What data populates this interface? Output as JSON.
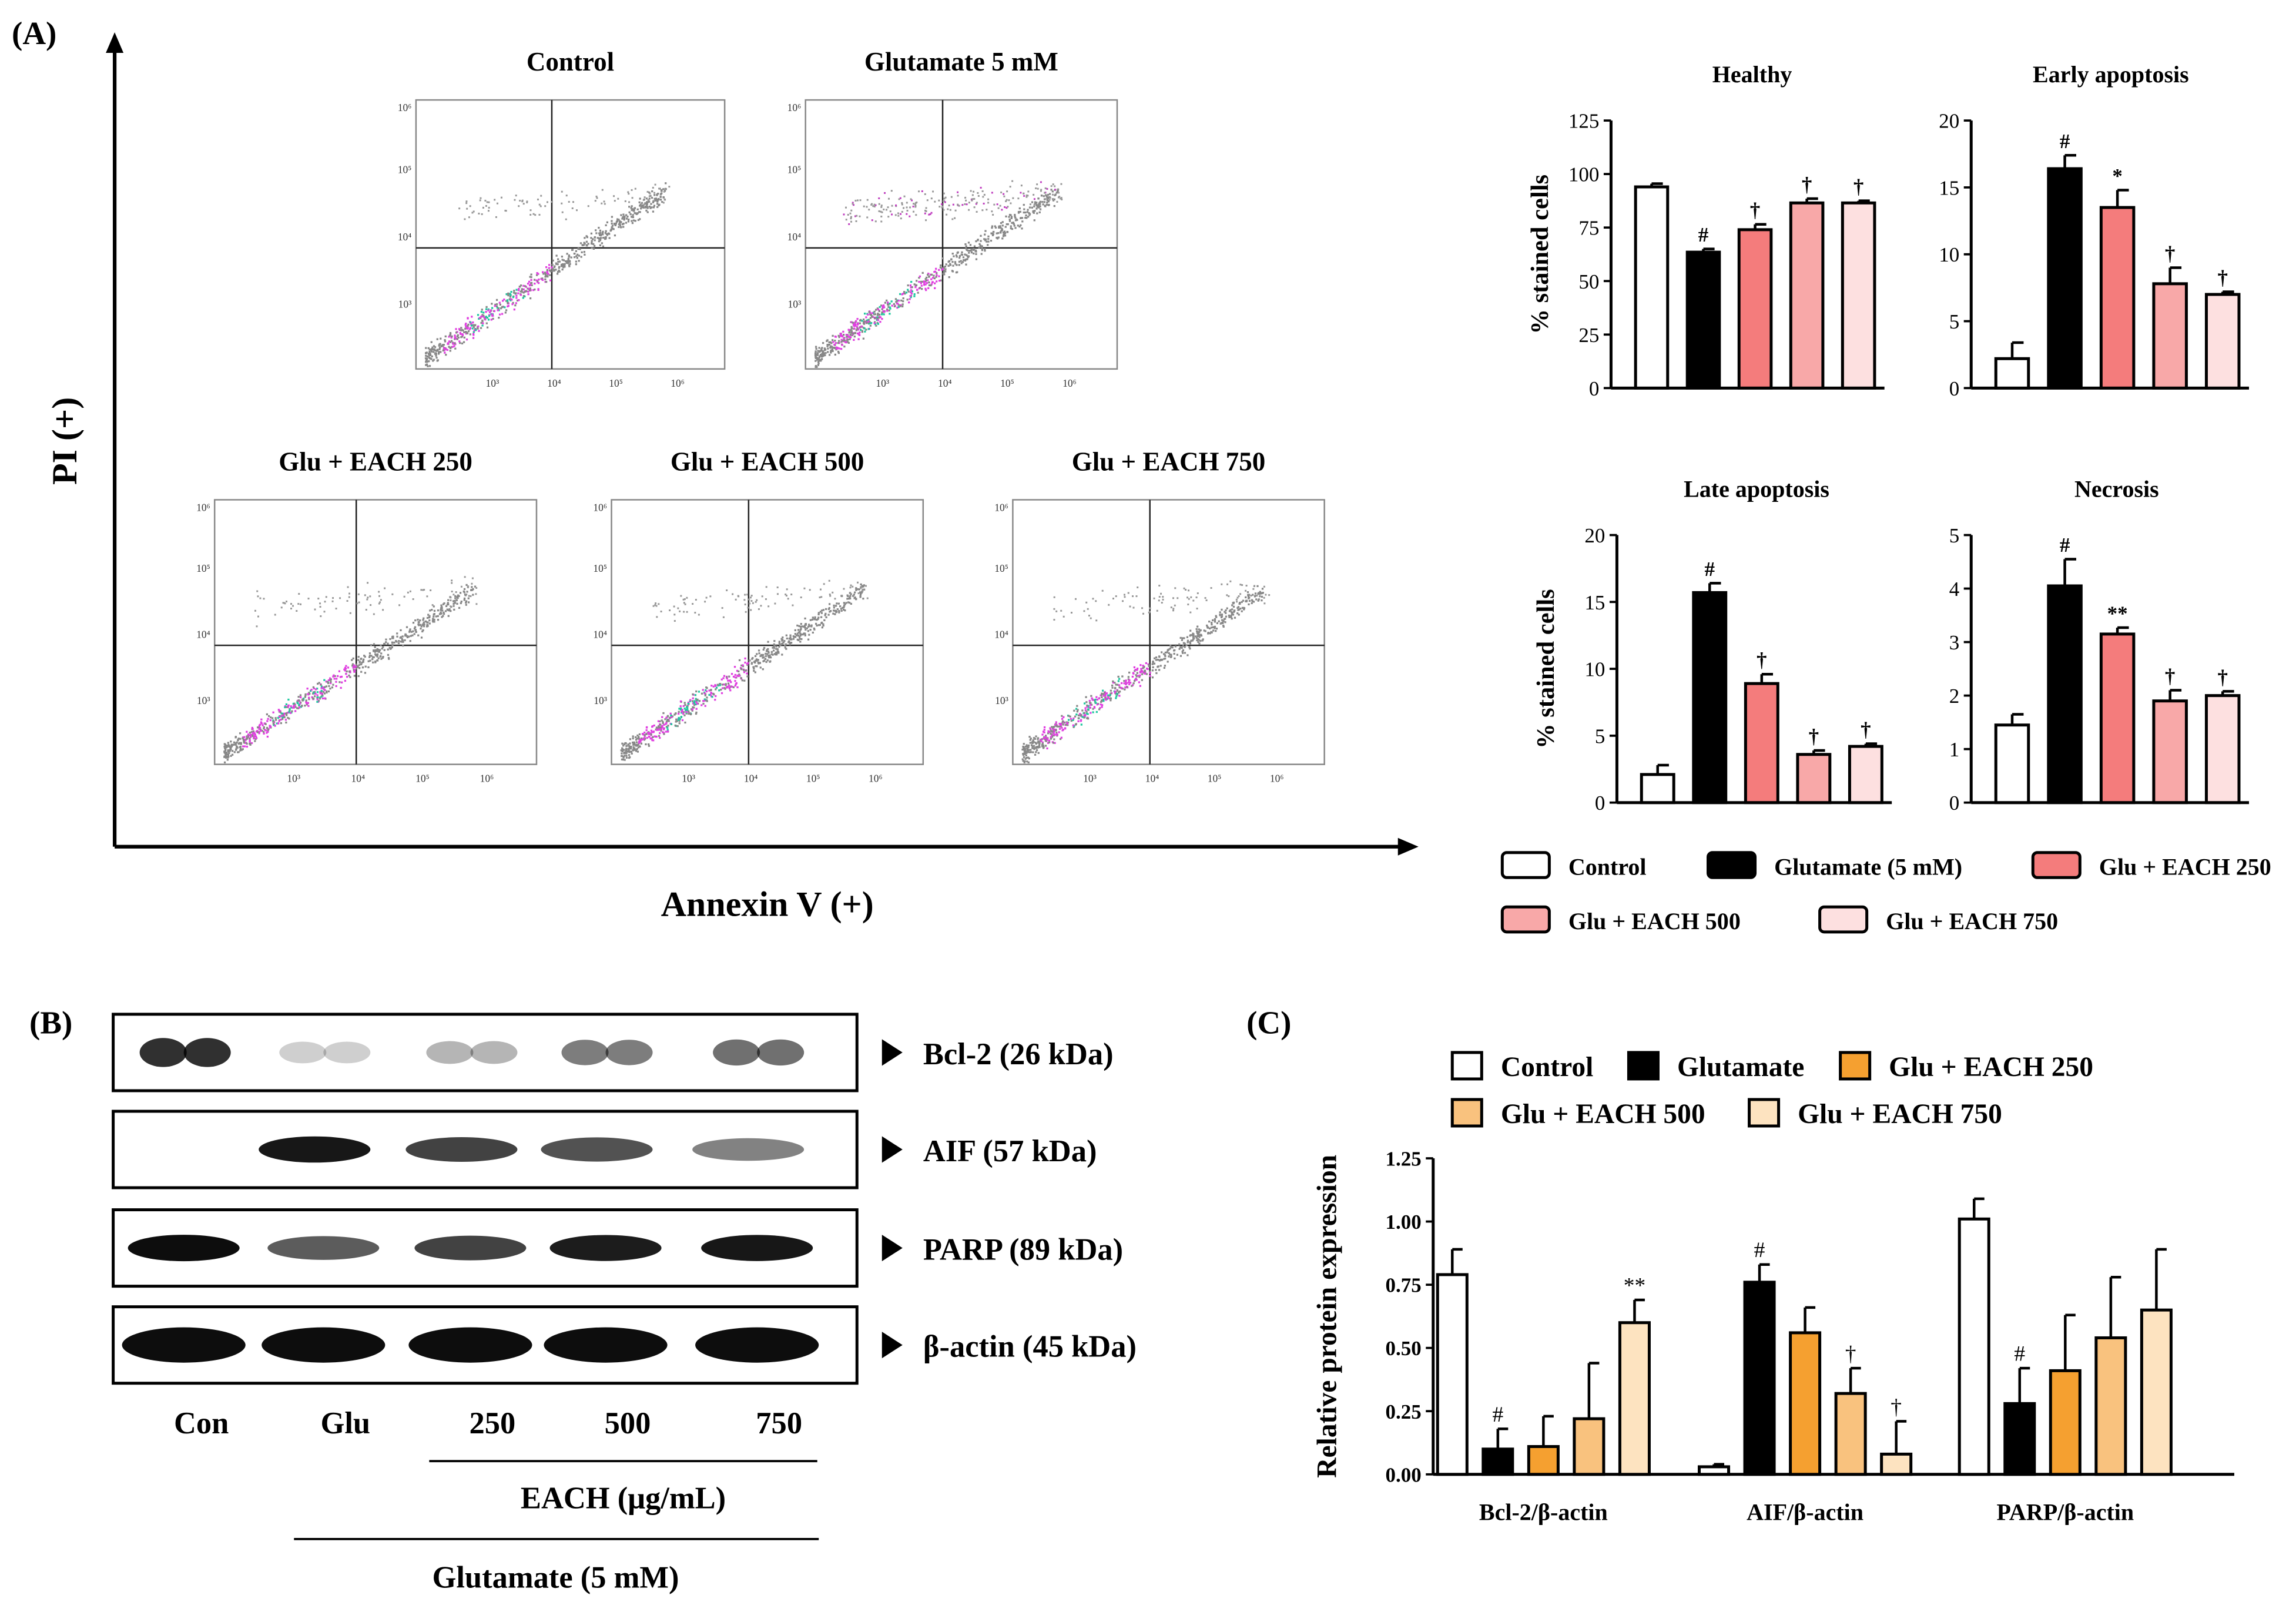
{
  "panel_labels": {
    "a": "(A)",
    "b": "(B)",
    "c": "(C)"
  },
  "flow_cytometry": {
    "y_axis_label": "PI (+)",
    "x_axis_label": "Annexin V (+)",
    "tick_labels": [
      "10³",
      "10⁴",
      "10⁵",
      "10⁶"
    ],
    "plots": [
      {
        "title": "Control"
      },
      {
        "title": "Glutamate 5 mM"
      },
      {
        "title": "Glu + EACH 250"
      },
      {
        "title": "Glu + EACH 500"
      },
      {
        "title": "Glu + EACH 750"
      }
    ]
  },
  "western_blot": {
    "lane_labels": [
      "Con",
      "Glu",
      "250",
      "500",
      "750"
    ],
    "each_label": "EACH (μg/mL)",
    "glutamate_label": "Glutamate (5 mM)",
    "bands": [
      {
        "label": "Bcl-2 (26 kDa)",
        "intensity": [
          0.95,
          0.12,
          0.25,
          0.55,
          0.62
        ]
      },
      {
        "label": "AIF (57 kDa)",
        "intensity": [
          0.0,
          0.95,
          0.7,
          0.62,
          0.35
        ]
      },
      {
        "label": "PARP (89 kDa)",
        "intensity": [
          1.0,
          0.55,
          0.7,
          0.92,
          0.95
        ]
      },
      {
        "label": "β-actin (45 kDa)",
        "intensity": [
          1.0,
          1.0,
          1.0,
          1.0,
          1.0
        ]
      }
    ]
  },
  "chart_data": [
    {
      "type": "bar",
      "title": "Healthy",
      "ylabel": "% stained cells",
      "ylim": [
        0,
        125
      ],
      "yticks": [
        0,
        25,
        50,
        75,
        100,
        125
      ],
      "categories": [
        "Control",
        "Glutamate (5 mM)",
        "Glu + EACH 250",
        "Glu + EACH 500",
        "Glu + EACH 750"
      ],
      "values": [
        94,
        63.5,
        74,
        86.5,
        86.5
      ],
      "errors": [
        1.5,
        1.5,
        2.5,
        2,
        1
      ],
      "annotations": [
        "",
        "#",
        "†",
        "†",
        "†"
      ]
    },
    {
      "type": "bar",
      "title": "Early apoptosis",
      "ylabel": "",
      "ylim": [
        0,
        20
      ],
      "yticks": [
        0,
        5,
        10,
        15,
        20
      ],
      "categories": [
        "Control",
        "Glutamate (5 mM)",
        "Glu + EACH 250",
        "Glu + EACH 500",
        "Glu + EACH 750"
      ],
      "values": [
        2.2,
        16.4,
        13.5,
        7.8,
        7
      ],
      "errors": [
        1.2,
        1,
        1.3,
        1.2,
        0.2
      ],
      "annotations": [
        "",
        "#",
        "*",
        "†",
        "†"
      ]
    },
    {
      "type": "bar",
      "title": "Late apoptosis",
      "ylabel": "% stained cells",
      "ylim": [
        0,
        20
      ],
      "yticks": [
        0,
        5,
        10,
        15,
        20
      ],
      "categories": [
        "Control",
        "Glutamate (5 mM)",
        "Glu + EACH 250",
        "Glu + EACH 500",
        "Glu + EACH 750"
      ],
      "values": [
        2.1,
        15.7,
        8.9,
        3.6,
        4.2
      ],
      "errors": [
        0.7,
        0.7,
        0.7,
        0.3,
        0.2
      ],
      "annotations": [
        "",
        "#",
        "†",
        "†",
        "†"
      ]
    },
    {
      "type": "bar",
      "title": "Necrosis",
      "ylabel": "",
      "ylim": [
        0,
        5
      ],
      "yticks": [
        0,
        1,
        2,
        3,
        4,
        5
      ],
      "categories": [
        "Control",
        "Glutamate (5 mM)",
        "Glu + EACH 250",
        "Glu + EACH 500",
        "Glu + EACH 750"
      ],
      "values": [
        1.45,
        4.05,
        3.15,
        1.9,
        2
      ],
      "errors": [
        0.2,
        0.5,
        0.12,
        0.2,
        0.08
      ],
      "annotations": [
        "",
        "#",
        "**",
        "†",
        "†"
      ]
    },
    {
      "type": "bar",
      "title": "",
      "ylabel": "Relative protein expression",
      "ylim": [
        0,
        1.25
      ],
      "yticks": [
        "0.00",
        "0.25",
        "0.50",
        "0.75",
        "1.00",
        "1.25"
      ],
      "categories": [
        "Bcl-2/β-actin",
        "AIF/β-actin",
        "PARP/β-actin"
      ],
      "series": [
        {
          "name": "Control",
          "values": [
            0.79,
            0.03,
            1.01
          ],
          "errors": [
            0.1,
            0.01,
            0.08
          ],
          "annotations": [
            "",
            "",
            ""
          ]
        },
        {
          "name": "Glutamate",
          "values": [
            0.1,
            0.76,
            0.28
          ],
          "errors": [
            0.08,
            0.07,
            0.14
          ],
          "annotations": [
            "#",
            "#",
            "#"
          ]
        },
        {
          "name": "Glu + EACH 250",
          "values": [
            0.11,
            0.56,
            0.41
          ],
          "errors": [
            0.12,
            0.1,
            0.22
          ],
          "annotations": [
            "",
            "",
            ""
          ]
        },
        {
          "name": "Glu + EACH 500",
          "values": [
            0.22,
            0.32,
            0.54
          ],
          "errors": [
            0.22,
            0.1,
            0.24
          ],
          "annotations": [
            "",
            "†",
            ""
          ]
        },
        {
          "name": "Glu + EACH 750",
          "values": [
            0.6,
            0.08,
            0.65
          ],
          "errors": [
            0.09,
            0.13,
            0.24
          ],
          "annotations": [
            "**",
            "†",
            ""
          ]
        }
      ]
    }
  ],
  "legend_a": [
    {
      "label": "Control",
      "color": "#ffffff"
    },
    {
      "label": "Glutamate (5 mM)",
      "color": "#000000"
    },
    {
      "label": "Glu + EACH 250",
      "color": "#f47c7c"
    },
    {
      "label": "Glu + EACH 500",
      "color": "#f8a8a8"
    },
    {
      "label": "Glu + EACH 750",
      "color": "#fde0e0"
    }
  ],
  "legend_c": [
    {
      "label": "Control",
      "color": "#ffffff"
    },
    {
      "label": "Glutamate",
      "color": "#000000"
    },
    {
      "label": "Glu + EACH 250",
      "color": "#f5a030"
    },
    {
      "label": "Glu + EACH 500",
      "color": "#f9c27e"
    },
    {
      "label": "Glu + EACH 750",
      "color": "#fde3c0"
    }
  ]
}
